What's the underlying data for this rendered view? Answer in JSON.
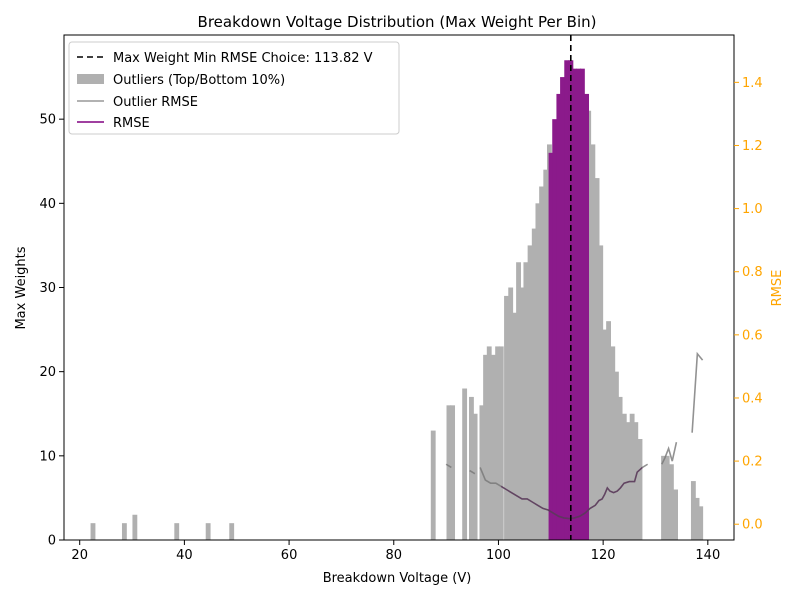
{
  "chart_data": {
    "type": "bar",
    "title": "Breakdown Voltage Distribution (Max Weight Per Bin)",
    "xlabel": "Breakdown Voltage (V)",
    "ylabel": "Max Weights",
    "ylabel_right": "RMSE",
    "xlim": [
      17,
      145
    ],
    "ylim": [
      0,
      60
    ],
    "ylim_right": [
      -0.05,
      1.55
    ],
    "x_ticks": [
      "20",
      "40",
      "60",
      "80",
      "100",
      "120",
      "140"
    ],
    "y_ticks": [
      "0",
      "10",
      "20",
      "30",
      "40",
      "50"
    ],
    "y_right_ticks": [
      "0.0",
      "0.2",
      "0.4",
      "0.6",
      "0.8",
      "1.0",
      "1.2",
      "1.4"
    ],
    "grid": false,
    "bar_width": 0.85,
    "min_rmse_choice": 113.82,
    "legend": {
      "position": "top-left",
      "entries": [
        {
          "label": "Max Weight Min RMSE Choice: 113.82 V",
          "style": "dashed-line",
          "color": "#000000"
        },
        {
          "label": "Outliers (Top/Bottom 10%)",
          "style": "patch",
          "color": "#b0b0b0"
        },
        {
          "label": "Outlier RMSE",
          "style": "line",
          "color": "#999999"
        },
        {
          "label": "RMSE",
          "style": "line",
          "color": "#800080"
        }
      ]
    },
    "series": [
      {
        "name": "Outliers (Top/Bottom 10%)",
        "color": "#b0b0b0",
        "bars": [
          [
            22.5,
            2
          ],
          [
            28.5,
            2
          ],
          [
            30.5,
            3
          ],
          [
            38.5,
            2
          ],
          [
            44.5,
            2
          ],
          [
            49.0,
            2
          ],
          [
            87.5,
            13
          ],
          [
            90.5,
            16
          ],
          [
            91.2,
            16
          ],
          [
            93.5,
            18
          ],
          [
            94.8,
            17
          ],
          [
            95.5,
            15
          ],
          [
            96.8,
            16
          ],
          [
            97.5,
            22
          ],
          [
            98.2,
            23
          ],
          [
            99.0,
            22
          ],
          [
            99.8,
            23
          ],
          [
            100.5,
            23
          ],
          [
            101.5,
            29
          ],
          [
            102.3,
            30
          ],
          [
            103.0,
            27
          ],
          [
            103.8,
            33
          ],
          [
            104.5,
            30
          ],
          [
            105.2,
            33
          ],
          [
            106.0,
            35
          ],
          [
            106.8,
            37
          ],
          [
            107.5,
            40
          ],
          [
            108.2,
            42
          ],
          [
            109.0,
            44
          ],
          [
            109.7,
            47
          ],
          [
            117.2,
            51
          ],
          [
            118.0,
            47
          ],
          [
            118.8,
            43
          ],
          [
            119.5,
            35
          ],
          [
            120.2,
            25
          ],
          [
            121.0,
            26
          ],
          [
            121.8,
            23
          ],
          [
            122.5,
            20
          ],
          [
            123.2,
            17
          ],
          [
            124.0,
            15
          ],
          [
            124.8,
            14
          ],
          [
            125.5,
            15
          ],
          [
            126.2,
            14
          ],
          [
            127.0,
            12
          ],
          [
            131.5,
            10
          ],
          [
            132.2,
            10
          ],
          [
            133.0,
            9
          ],
          [
            133.8,
            6
          ],
          [
            137.2,
            7
          ],
          [
            137.9,
            5
          ],
          [
            138.6,
            4
          ]
        ]
      },
      {
        "name": "Max Weights",
        "color": "#8b1a8b",
        "bars": [
          [
            110.0,
            46
          ],
          [
            110.7,
            50
          ],
          [
            111.5,
            53
          ],
          [
            112.2,
            55
          ],
          [
            113.0,
            57
          ],
          [
            113.8,
            57
          ],
          [
            114.5,
            56
          ],
          [
            115.3,
            56
          ],
          [
            116.0,
            56
          ],
          [
            116.8,
            53
          ]
        ]
      },
      {
        "name": "Outlier RMSE",
        "color": "#999999",
        "axis": "right",
        "segments": [
          [
            [
              90.0,
              0.19
            ],
            [
              91.0,
              0.18
            ]
          ],
          [
            [
              94.5,
              0.17
            ],
            [
              95.5,
              0.16
            ]
          ],
          [
            [
              96.5,
              0.18
            ],
            [
              97.5,
              0.14
            ],
            [
              98.5,
              0.13
            ],
            [
              99.5,
              0.13
            ],
            [
              100.5,
              0.12
            ]
          ],
          [
            [
              127.5,
              0.18
            ],
            [
              128.5,
              0.19
            ]
          ],
          [
            [
              131.2,
              0.19
            ],
            [
              131.8,
              0.21
            ],
            [
              132.5,
              0.24
            ],
            [
              133.2,
              0.2
            ],
            [
              134.0,
              0.26
            ]
          ],
          [
            [
              137.0,
              0.29
            ],
            [
              138.0,
              0.54
            ],
            [
              139.0,
              0.52
            ]
          ]
        ]
      },
      {
        "name": "RMSE",
        "color": "#800080",
        "axis": "right",
        "points": [
          [
            100.5,
            0.12
          ],
          [
            101.5,
            0.11
          ],
          [
            102.5,
            0.1
          ],
          [
            103.5,
            0.09
          ],
          [
            104.5,
            0.08
          ],
          [
            105.5,
            0.08
          ],
          [
            106.5,
            0.07
          ],
          [
            107.5,
            0.06
          ],
          [
            108.5,
            0.05
          ],
          [
            109.5,
            0.045
          ],
          [
            110.5,
            0.035
          ],
          [
            111.5,
            0.025
          ],
          [
            112.5,
            0.02
          ],
          [
            113.5,
            0.018
          ],
          [
            114.5,
            0.02
          ],
          [
            115.5,
            0.025
          ],
          [
            116.5,
            0.035
          ],
          [
            117.5,
            0.05
          ],
          [
            118.5,
            0.06
          ],
          [
            119.2,
            0.075
          ],
          [
            119.8,
            0.08
          ],
          [
            120.3,
            0.095
          ],
          [
            120.8,
            0.115
          ],
          [
            121.3,
            0.105
          ],
          [
            122.0,
            0.1
          ],
          [
            122.7,
            0.105
          ],
          [
            123.3,
            0.115
          ],
          [
            124.0,
            0.13
          ],
          [
            125.0,
            0.135
          ],
          [
            126.0,
            0.135
          ],
          [
            126.5,
            0.165
          ],
          [
            127.5,
            0.18
          ]
        ]
      }
    ]
  }
}
